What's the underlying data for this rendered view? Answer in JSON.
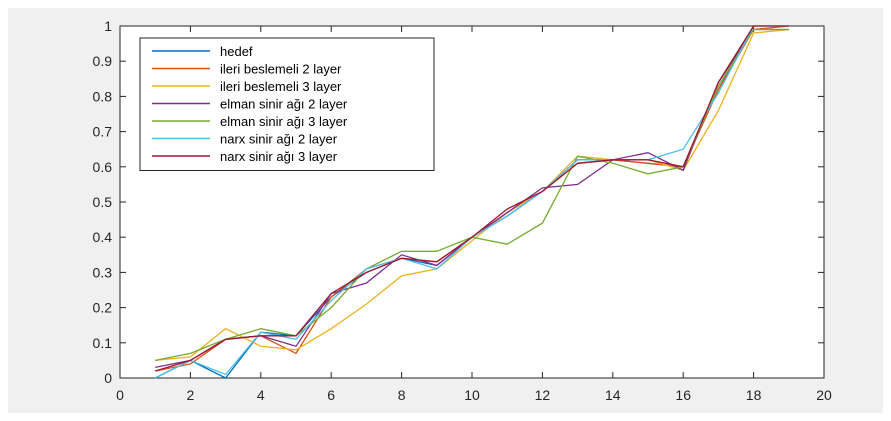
{
  "chart_data": {
    "type": "line",
    "title": "",
    "xlabel": "",
    "ylabel": "",
    "xlim": [
      0,
      20
    ],
    "ylim": [
      0,
      1
    ],
    "grid": false,
    "legend_position": "top-left",
    "x": [
      1,
      2,
      3,
      4,
      5,
      6,
      7,
      8,
      9,
      10,
      11,
      12,
      13,
      14,
      15,
      16,
      17,
      18,
      19
    ],
    "x_ticks": [
      "0",
      "2",
      "4",
      "6",
      "8",
      "10",
      "12",
      "14",
      "16",
      "18",
      "20"
    ],
    "y_ticks": [
      "0",
      "0.1",
      "0.2",
      "0.3",
      "0.4",
      "0.5",
      "0.6",
      "0.7",
      "0.8",
      "0.9",
      "1"
    ],
    "series": [
      {
        "name": "hedef",
        "color": "#0072bd",
        "values": [
          0.0,
          0.05,
          0.0,
          0.13,
          0.12,
          0.23,
          0.3,
          0.34,
          0.32,
          0.4,
          0.46,
          0.53,
          0.62,
          0.62,
          0.61,
          0.6,
          0.82,
          1.0,
          1.0
        ]
      },
      {
        "name": "ileri beslemeli 2 layer",
        "color": "#d95319",
        "values": [
          0.02,
          0.04,
          0.11,
          0.12,
          0.07,
          0.23,
          0.31,
          0.34,
          0.33,
          0.4,
          0.47,
          0.53,
          0.61,
          0.62,
          0.61,
          0.6,
          0.82,
          0.99,
          1.0
        ]
      },
      {
        "name": "ileri beslemeli 3 layer",
        "color": "#edb120",
        "values": [
          0.05,
          0.06,
          0.14,
          0.09,
          0.08,
          0.14,
          0.21,
          0.29,
          0.31,
          0.39,
          0.47,
          0.53,
          0.63,
          0.62,
          0.62,
          0.59,
          0.76,
          0.98,
          0.99
        ]
      },
      {
        "name": "elman sinir ağı 2 layer",
        "color": "#7e2f8e",
        "values": [
          0.03,
          0.05,
          0.11,
          0.12,
          0.09,
          0.24,
          0.27,
          0.35,
          0.32,
          0.4,
          0.47,
          0.54,
          0.55,
          0.62,
          0.64,
          0.59,
          0.84,
          0.99,
          0.99
        ]
      },
      {
        "name": "elman sinir ağı 3 layer",
        "color": "#77ac30",
        "values": [
          0.05,
          0.07,
          0.11,
          0.14,
          0.12,
          0.2,
          0.31,
          0.36,
          0.36,
          0.4,
          0.38,
          0.44,
          0.63,
          0.61,
          0.58,
          0.6,
          0.83,
          0.99,
          0.99
        ]
      },
      {
        "name": "narx sinir ağı 2 layer",
        "color": "#4dbeee",
        "values": [
          0.0,
          0.05,
          0.01,
          0.13,
          0.11,
          0.22,
          0.31,
          0.34,
          0.31,
          0.4,
          0.46,
          0.53,
          0.62,
          0.62,
          0.62,
          0.65,
          0.81,
          1.0,
          1.0
        ]
      },
      {
        "name": "narx sinir ağı 3 layer",
        "color": "#a2142f",
        "values": [
          0.02,
          0.05,
          0.11,
          0.12,
          0.12,
          0.24,
          0.3,
          0.34,
          0.33,
          0.4,
          0.48,
          0.53,
          0.61,
          0.62,
          0.62,
          0.6,
          0.84,
          1.0,
          1.0
        ]
      }
    ]
  }
}
